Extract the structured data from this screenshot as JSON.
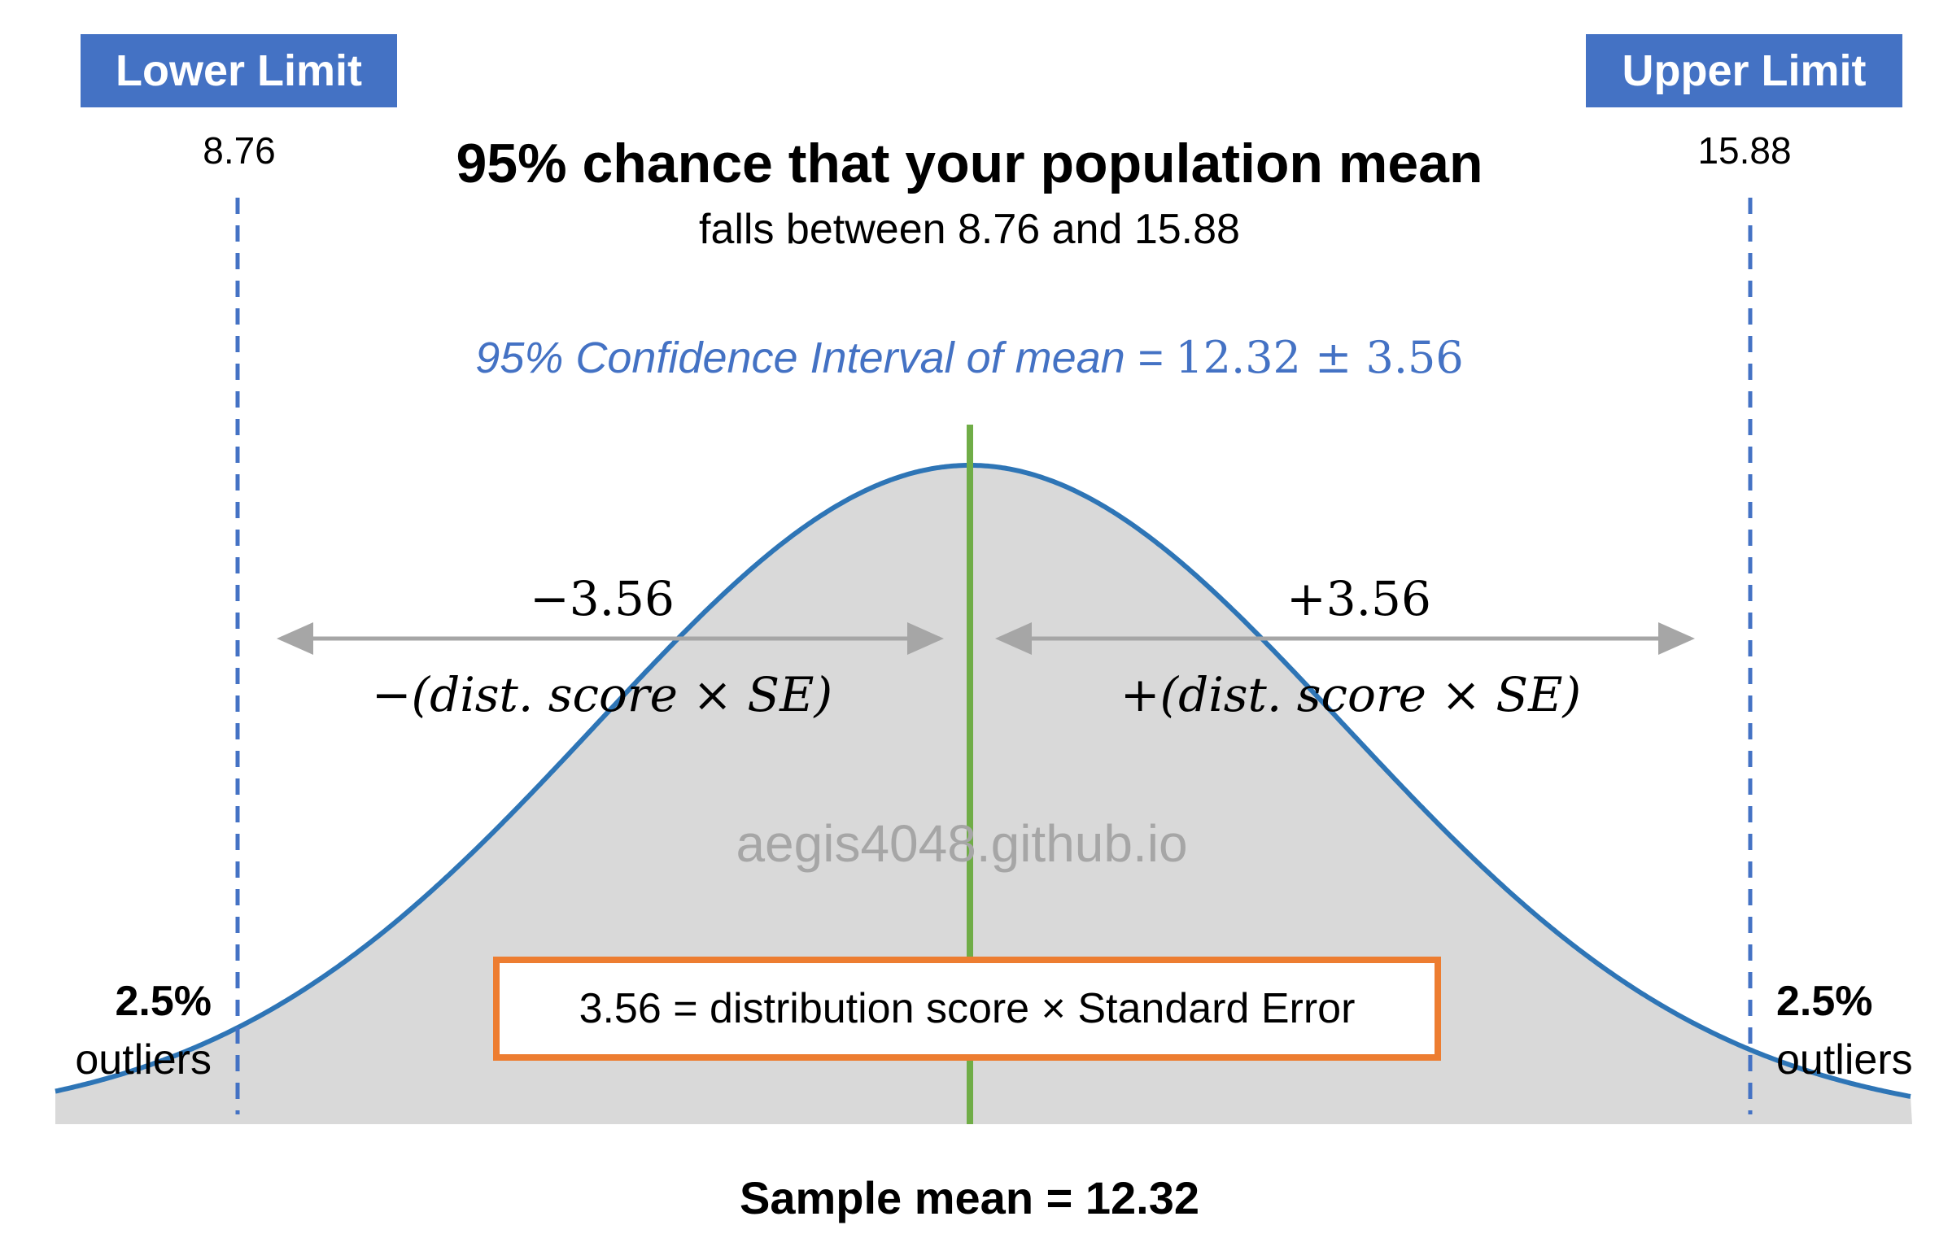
{
  "colors": {
    "accent_blue": "#4472C4",
    "curve_blue": "#2E75B6",
    "mean_line_green": "#70AD47",
    "arrow_gray": "#A6A6A6",
    "fill_gray": "#D9D9D9",
    "formula_border_orange": "#ED7D31",
    "watermark_gray": "#A6A6A6"
  },
  "limits": {
    "lower_label": "Lower Limit",
    "lower_value": "8.76",
    "upper_label": "Upper Limit",
    "upper_value": "15.88"
  },
  "title": "95% chance that your population mean",
  "subtitle": "falls between 8.76 and 15.88",
  "confidence_interval": {
    "label": "95% Confidence Interval of mean = ",
    "value": "12.32  ± 3.56"
  },
  "left_arrow": {
    "value": "−3.56",
    "expression": "−(dist. score × SE)"
  },
  "right_arrow": {
    "value": "+3.56",
    "expression": "+(dist. score × SE)"
  },
  "watermark": "aegis4048.github.io",
  "formula_box": "3.56 = distribution score × Standard Error",
  "left_tail": {
    "percent": "2.5%",
    "label": "outliers"
  },
  "right_tail": {
    "percent": "2.5%",
    "label": "outliers"
  },
  "sample_mean_label": "Sample mean = 12.32",
  "distribution": {
    "mean": 12.32,
    "margin": 3.56,
    "lower": 8.76,
    "upper": 15.88,
    "tail_probability": 0.025
  }
}
